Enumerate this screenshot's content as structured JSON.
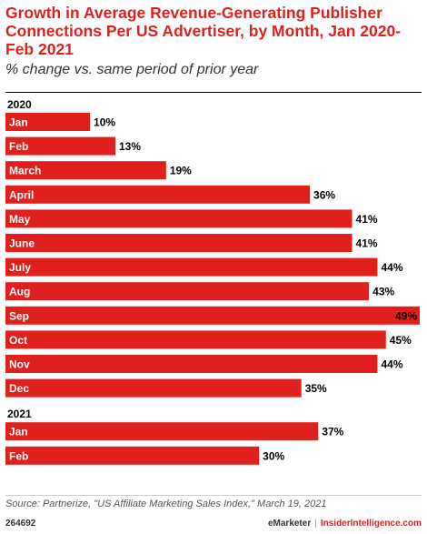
{
  "header": {
    "title": "Growth in Average Revenue-Generating Publisher Connections Per US Advertiser, by Month, Jan 2020-Feb 2021",
    "subtitle": "% change vs. same period of prior year"
  },
  "colors": {
    "bar": "#e0201d",
    "title": "#e0201d"
  },
  "chart_data": {
    "type": "bar",
    "orientation": "horizontal",
    "value_suffix": "%",
    "xlim": [
      0,
      49
    ],
    "groups": [
      {
        "label": "2020",
        "categories": [
          "Jan",
          "Feb",
          "March",
          "April",
          "May",
          "June",
          "July",
          "Aug",
          "Sep",
          "Oct",
          "Nov",
          "Dec"
        ],
        "values": [
          10,
          13,
          19,
          36,
          41,
          41,
          44,
          43,
          49,
          45,
          44,
          35
        ]
      },
      {
        "label": "2021",
        "categories": [
          "Jan",
          "Feb"
        ],
        "values": [
          37,
          30
        ]
      }
    ]
  },
  "footer": {
    "source": "Source: Partnerize, \"US Affiliate Marketing Sales Index,\" March 19, 2021",
    "chart_id": "264692",
    "brand_emarketer": "eMarketer",
    "separator": "|",
    "brand_ii": "InsiderIntelligence.com"
  }
}
